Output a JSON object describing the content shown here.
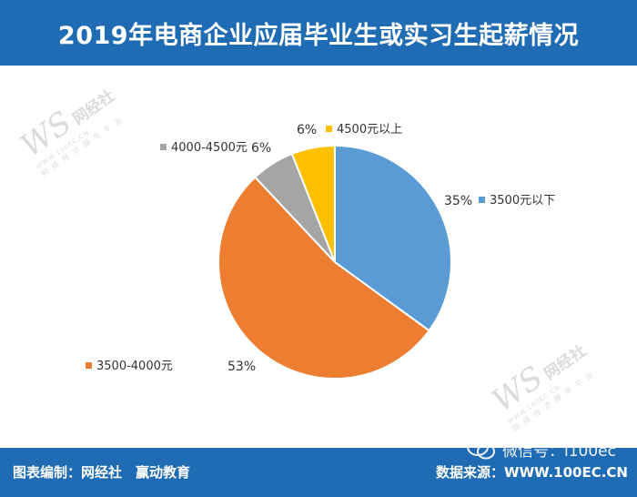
{
  "header": {
    "title": "2019年电商企业应届毕业生或实习生起薪情况"
  },
  "chart_data": {
    "type": "pie",
    "title": "2019年电商企业应届毕业生或实习生起薪情况",
    "slices": [
      {
        "label": "3500元以下",
        "value": 35,
        "pct_label": "35%",
        "color": "#5b9bd5"
      },
      {
        "label": "3500-4000元",
        "value": 53,
        "pct_label": "53%",
        "color": "#ed7d31"
      },
      {
        "label": "4000-4500元",
        "value": 6,
        "pct_label": "6%",
        "color": "#a5a5a5"
      },
      {
        "label": "4500元以上",
        "value": 6,
        "pct_label": "6%",
        "color": "#ffc000"
      }
    ]
  },
  "footer": {
    "left": "图表编制：网经社　赢动教育",
    "right": "数据来源：WWW.100EC.CN"
  },
  "watermark": {
    "logo": "WS",
    "name": "网经社",
    "url": "WWW.100EC.CN",
    "sub": "网络经济服务平台",
    "wechat": "微信号：i100ec"
  }
}
